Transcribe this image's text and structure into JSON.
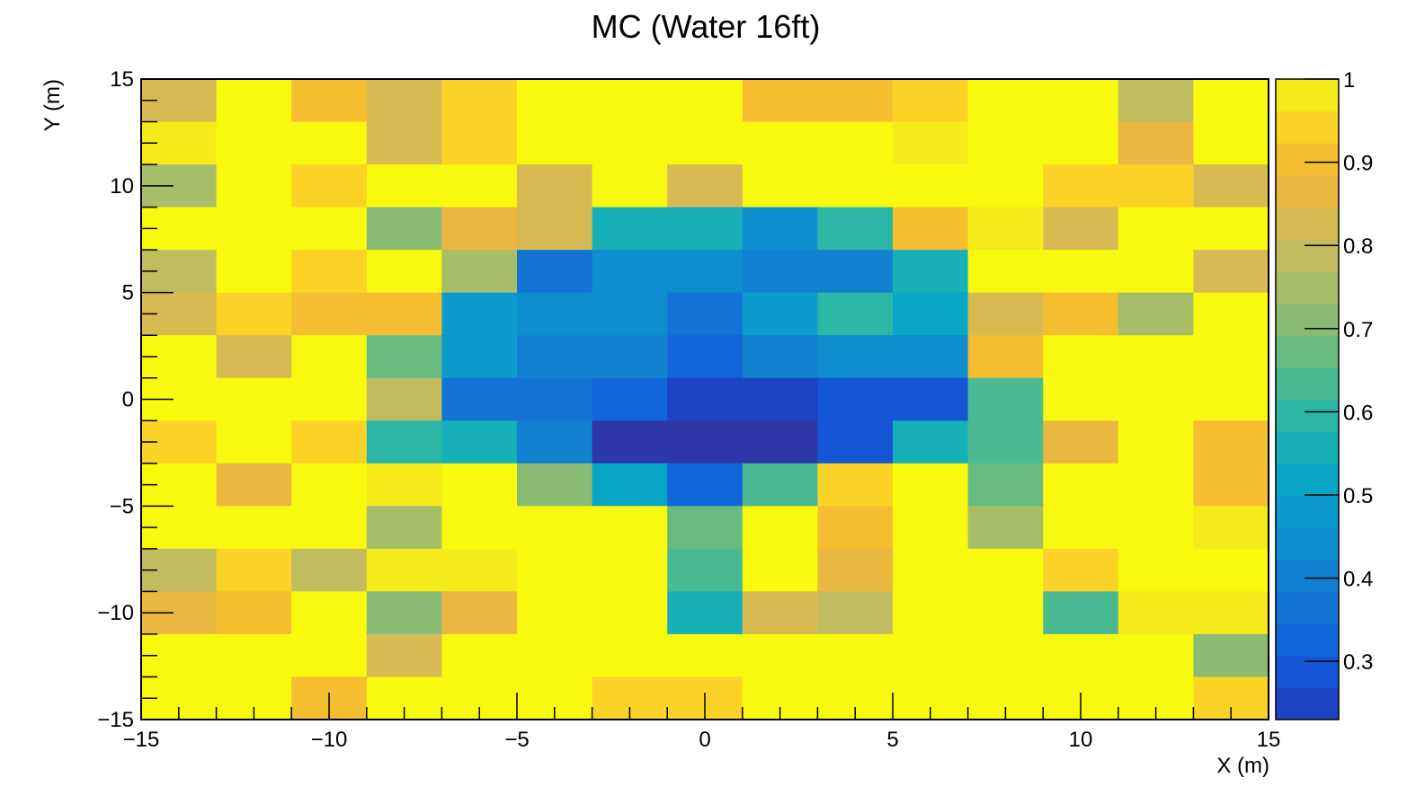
{
  "chart_data": {
    "type": "heatmap",
    "title": "MC (Water 16ft)",
    "xlabel": "X (m)",
    "ylabel": "Y (m)",
    "xlim": [
      -15,
      15
    ],
    "ylim": [
      -15,
      15
    ],
    "x_edges": [
      -15,
      -13,
      -11,
      -9,
      -7,
      -5,
      -3,
      -1,
      1,
      3,
      5,
      7,
      9,
      11,
      13,
      15
    ],
    "y_edges": [
      -15,
      -13,
      -11,
      -9,
      -7,
      -5,
      -3,
      -1,
      1,
      3,
      5,
      7,
      9,
      11,
      13,
      15
    ],
    "x_ticks": [
      -15,
      -10,
      -5,
      0,
      5,
      10,
      15
    ],
    "x_tick_labels": [
      "−15",
      "−10",
      "−5",
      "0",
      "5",
      "10",
      "15"
    ],
    "y_ticks": [
      -15,
      -10,
      -5,
      0,
      5,
      10,
      15
    ],
    "y_tick_labels": [
      "−15",
      "−10",
      "−5",
      "0",
      "5",
      "10",
      "15"
    ],
    "colorbar": {
      "min": 0.23,
      "max": 1.0,
      "levels": 20,
      "ticks": [
        0.3,
        0.4,
        0.5,
        0.6,
        0.7,
        0.8,
        0.9,
        1.0
      ],
      "tick_labels": [
        "0.3",
        "0.4",
        "0.5",
        "0.6",
        "0.7",
        "0.8",
        "0.9",
        "1"
      ]
    },
    "z_rows_top_to_bottom": [
      [
        0.83,
        1.0,
        0.89,
        0.81,
        0.93,
        1.0,
        1.0,
        1.0,
        0.88,
        0.88,
        0.93,
        1.0,
        1.0,
        0.79,
        1.0
      ],
      [
        0.95,
        1.0,
        1.0,
        0.81,
        0.93,
        1.0,
        1.0,
        1.0,
        1.0,
        1.0,
        0.96,
        1.0,
        1.0,
        0.87,
        1.0
      ],
      [
        0.76,
        1.0,
        0.91,
        1.0,
        1.0,
        0.81,
        1.0,
        0.81,
        1.0,
        1.0,
        1.0,
        1.0,
        0.92,
        0.93,
        0.83
      ],
      [
        1.0,
        1.0,
        1.0,
        0.72,
        0.84,
        0.81,
        0.56,
        0.56,
        0.44,
        0.61,
        0.89,
        0.96,
        0.81,
        1.0,
        1.0
      ],
      [
        0.77,
        1.0,
        0.91,
        1.0,
        0.73,
        0.36,
        0.44,
        0.44,
        0.41,
        0.43,
        0.55,
        1.0,
        1.0,
        1.0,
        0.83
      ],
      [
        0.82,
        0.93,
        0.88,
        0.89,
        0.5,
        0.46,
        0.46,
        0.38,
        0.5,
        0.61,
        0.52,
        0.82,
        0.89,
        0.76,
        1.0
      ],
      [
        1.0,
        0.82,
        1.0,
        0.67,
        0.5,
        0.41,
        0.41,
        0.33,
        0.42,
        0.44,
        0.44,
        0.9,
        1.0,
        1.0,
        1.0
      ],
      [
        1.0,
        1.0,
        1.0,
        0.77,
        0.37,
        0.36,
        0.33,
        0.27,
        0.27,
        0.31,
        0.31,
        0.64,
        1.0,
        1.0,
        1.0
      ],
      [
        0.92,
        1.0,
        0.92,
        0.58,
        0.57,
        0.42,
        0.24,
        0.24,
        0.24,
        0.31,
        0.57,
        0.65,
        0.85,
        1.0,
        0.9
      ],
      [
        1.0,
        0.84,
        1.0,
        0.96,
        1.0,
        0.72,
        0.52,
        0.33,
        0.64,
        0.94,
        1.0,
        0.67,
        1.0,
        1.0,
        0.9
      ],
      [
        1.0,
        1.0,
        1.0,
        0.73,
        1.0,
        1.0,
        1.0,
        0.67,
        1.0,
        0.9,
        1.0,
        0.76,
        1.0,
        1.0,
        0.97
      ],
      [
        0.77,
        0.91,
        0.78,
        0.97,
        0.97,
        1.0,
        1.0,
        0.64,
        1.0,
        0.85,
        1.0,
        1.0,
        0.92,
        1.0,
        1.0
      ],
      [
        0.84,
        0.89,
        1.0,
        0.71,
        0.85,
        1.0,
        1.0,
        0.55,
        0.82,
        0.78,
        1.0,
        1.0,
        0.64,
        0.97,
        0.97
      ],
      [
        1.0,
        1.0,
        1.0,
        0.81,
        1.0,
        1.0,
        1.0,
        1.0,
        1.0,
        1.0,
        1.0,
        1.0,
        1.0,
        1.0,
        0.72
      ],
      [
        1.0,
        1.0,
        0.9,
        1.0,
        1.0,
        1.0,
        0.91,
        0.91,
        1.0,
        1.0,
        1.0,
        1.0,
        1.0,
        1.0,
        0.93
      ]
    ],
    "palette": [
      "#2e37a7",
      "#1e44c4",
      "#1456d6",
      "#1167da",
      "#1474d6",
      "#1282d0",
      "#0e8ecf",
      "#0c9bcc",
      "#0aa6c6",
      "#18b0b8",
      "#2bb6a6",
      "#4bba92",
      "#68bb7f",
      "#89bc72",
      "#a8bd68",
      "#c2bc60",
      "#d8ba52",
      "#eab840",
      "#f5bd30",
      "#fbd327",
      "#f6eb1a",
      "#f9f90f"
    ]
  }
}
